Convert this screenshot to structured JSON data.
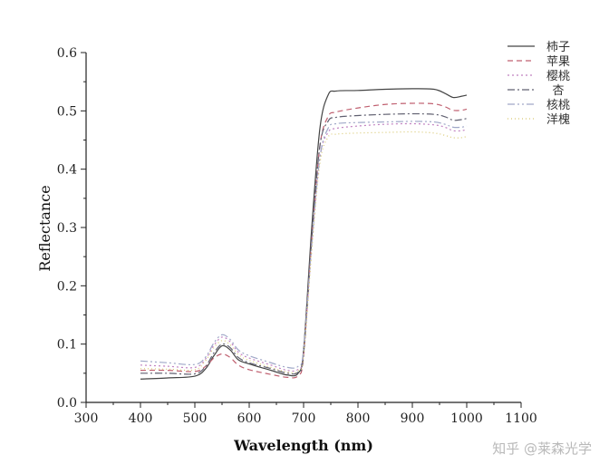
{
  "chart_data": {
    "type": "line",
    "title": "",
    "xlabel": "Wavelength (nm)",
    "ylabel": "Reflectance",
    "xlim": [
      300,
      1100
    ],
    "ylim": [
      0,
      0.6
    ],
    "x_ticks": [
      300,
      400,
      500,
      600,
      700,
      800,
      900,
      1000,
      1100
    ],
    "y_ticks": [
      "0.0",
      "0.1",
      "0.2",
      "0.3",
      "0.4",
      "0.5",
      "0.6"
    ],
    "grid": false,
    "legend_position": "top-right",
    "series": [
      {
        "name": "柿子",
        "color": "#444444",
        "dash": "solid",
        "points": [
          [
            400,
            0.04
          ],
          [
            450,
            0.042
          ],
          [
            500,
            0.045
          ],
          [
            520,
            0.058
          ],
          [
            535,
            0.08
          ],
          [
            550,
            0.097
          ],
          [
            565,
            0.09
          ],
          [
            580,
            0.073
          ],
          [
            600,
            0.066
          ],
          [
            640,
            0.055
          ],
          [
            670,
            0.047
          ],
          [
            690,
            0.05
          ],
          [
            700,
            0.09
          ],
          [
            715,
            0.3
          ],
          [
            730,
            0.47
          ],
          [
            745,
            0.527
          ],
          [
            760,
            0.534
          ],
          [
            800,
            0.535
          ],
          [
            850,
            0.537
          ],
          [
            900,
            0.538
          ],
          [
            940,
            0.537
          ],
          [
            960,
            0.53
          ],
          [
            975,
            0.523
          ],
          [
            990,
            0.525
          ],
          [
            1000,
            0.527
          ]
        ]
      },
      {
        "name": "苹果",
        "color": "#c06070",
        "dash": "6,4",
        "points": [
          [
            400,
            0.055
          ],
          [
            450,
            0.055
          ],
          [
            500,
            0.053
          ],
          [
            520,
            0.062
          ],
          [
            535,
            0.076
          ],
          [
            550,
            0.083
          ],
          [
            565,
            0.077
          ],
          [
            580,
            0.064
          ],
          [
            600,
            0.056
          ],
          [
            640,
            0.048
          ],
          [
            670,
            0.043
          ],
          [
            690,
            0.046
          ],
          [
            700,
            0.08
          ],
          [
            715,
            0.28
          ],
          [
            730,
            0.44
          ],
          [
            745,
            0.49
          ],
          [
            760,
            0.498
          ],
          [
            800,
            0.505
          ],
          [
            850,
            0.511
          ],
          [
            900,
            0.513
          ],
          [
            940,
            0.512
          ],
          [
            960,
            0.507
          ],
          [
            975,
            0.501
          ],
          [
            990,
            0.501
          ],
          [
            1000,
            0.503
          ]
        ]
      },
      {
        "name": "樱桃",
        "color": "#c080c0",
        "dash": "2,3",
        "points": [
          [
            400,
            0.064
          ],
          [
            450,
            0.062
          ],
          [
            500,
            0.06
          ],
          [
            520,
            0.075
          ],
          [
            535,
            0.098
          ],
          [
            550,
            0.112
          ],
          [
            565,
            0.104
          ],
          [
            580,
            0.086
          ],
          [
            600,
            0.076
          ],
          [
            640,
            0.064
          ],
          [
            670,
            0.055
          ],
          [
            690,
            0.057
          ],
          [
            700,
            0.085
          ],
          [
            715,
            0.27
          ],
          [
            730,
            0.42
          ],
          [
            745,
            0.463
          ],
          [
            760,
            0.47
          ],
          [
            800,
            0.474
          ],
          [
            850,
            0.477
          ],
          [
            900,
            0.478
          ],
          [
            940,
            0.476
          ],
          [
            960,
            0.472
          ],
          [
            975,
            0.466
          ],
          [
            990,
            0.466
          ],
          [
            1000,
            0.468
          ]
        ]
      },
      {
        "name": "杏",
        "color": "#606070",
        "dash": "8,3,2,3",
        "points": [
          [
            400,
            0.05
          ],
          [
            450,
            0.05
          ],
          [
            500,
            0.049
          ],
          [
            520,
            0.062
          ],
          [
            535,
            0.085
          ],
          [
            550,
            0.1
          ],
          [
            565,
            0.094
          ],
          [
            580,
            0.077
          ],
          [
            600,
            0.068
          ],
          [
            640,
            0.058
          ],
          [
            670,
            0.05
          ],
          [
            690,
            0.052
          ],
          [
            700,
            0.082
          ],
          [
            715,
            0.28
          ],
          [
            730,
            0.44
          ],
          [
            745,
            0.482
          ],
          [
            760,
            0.489
          ],
          [
            800,
            0.492
          ],
          [
            850,
            0.494
          ],
          [
            900,
            0.495
          ],
          [
            940,
            0.494
          ],
          [
            960,
            0.49
          ],
          [
            975,
            0.484
          ],
          [
            990,
            0.485
          ],
          [
            1000,
            0.487
          ]
        ]
      },
      {
        "name": "核桃",
        "color": "#a0a8c8",
        "dash": "8,3,2,3,2,3",
        "points": [
          [
            400,
            0.071
          ],
          [
            450,
            0.068
          ],
          [
            500,
            0.065
          ],
          [
            520,
            0.078
          ],
          [
            535,
            0.102
          ],
          [
            550,
            0.116
          ],
          [
            565,
            0.108
          ],
          [
            580,
            0.09
          ],
          [
            600,
            0.08
          ],
          [
            640,
            0.068
          ],
          [
            670,
            0.06
          ],
          [
            690,
            0.062
          ],
          [
            700,
            0.09
          ],
          [
            715,
            0.27
          ],
          [
            730,
            0.42
          ],
          [
            745,
            0.47
          ],
          [
            760,
            0.478
          ],
          [
            800,
            0.48
          ],
          [
            850,
            0.481
          ],
          [
            900,
            0.482
          ],
          [
            940,
            0.481
          ],
          [
            960,
            0.477
          ],
          [
            975,
            0.472
          ],
          [
            990,
            0.472
          ],
          [
            1000,
            0.474
          ]
        ]
      },
      {
        "name": "洋槐",
        "color": "#d8c870",
        "dash": "1,3",
        "points": [
          [
            400,
            0.058
          ],
          [
            450,
            0.057
          ],
          [
            500,
            0.056
          ],
          [
            520,
            0.072
          ],
          [
            535,
            0.094
          ],
          [
            550,
            0.106
          ],
          [
            565,
            0.099
          ],
          [
            580,
            0.082
          ],
          [
            600,
            0.072
          ],
          [
            640,
            0.06
          ],
          [
            670,
            0.052
          ],
          [
            690,
            0.054
          ],
          [
            700,
            0.08
          ],
          [
            715,
            0.26
          ],
          [
            730,
            0.41
          ],
          [
            745,
            0.455
          ],
          [
            760,
            0.46
          ],
          [
            800,
            0.462
          ],
          [
            850,
            0.463
          ],
          [
            900,
            0.464
          ],
          [
            940,
            0.462
          ],
          [
            960,
            0.458
          ],
          [
            975,
            0.454
          ],
          [
            990,
            0.454
          ],
          [
            1000,
            0.456
          ]
        ]
      }
    ]
  },
  "watermark": "知乎 @莱森光学"
}
